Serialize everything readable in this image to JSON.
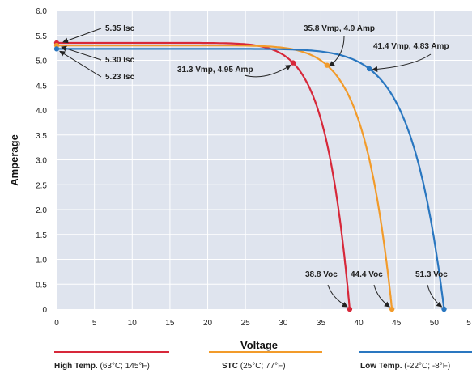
{
  "chart_data": {
    "type": "line",
    "xlabel": "Voltage",
    "ylabel": "Amperage",
    "xlim": [
      0,
      55
    ],
    "ylim": [
      0,
      6
    ],
    "x_ticks": [
      "0",
      "5",
      "10",
      "15",
      "20",
      "25",
      "30",
      "35",
      "40",
      "45",
      "50",
      "5"
    ],
    "y_ticks": [
      "0",
      "0.5",
      "1.0",
      "1.5",
      "2.0",
      "2.5",
      "3.0",
      "3.5",
      "4.0",
      "4.5",
      "5.0",
      "5.5",
      "6.0"
    ],
    "grid": true,
    "series": [
      {
        "key": "high",
        "name": "High Temp.",
        "detail": "(63°C; 145°F)",
        "color": "#d7283a",
        "isc": 5.35,
        "vmp": 31.3,
        "imp": 4.95,
        "voc": 38.8,
        "isc_label": "5.35 Isc",
        "mpp_label": "31.3 Vmp, 4.95 Amp",
        "voc_label": "38.8 Voc"
      },
      {
        "key": "stc",
        "name": "STC",
        "detail": "(25°C; 77°F)",
        "color": "#f29b2a",
        "isc": 5.3,
        "vmp": 35.8,
        "imp": 4.9,
        "voc": 44.4,
        "isc_label": "5.30 Isc",
        "mpp_label": "35.8 Vmp, 4.9 Amp",
        "voc_label": "44.4 Voc"
      },
      {
        "key": "low",
        "name": "Low Temp.",
        "detail": "(-22°C; -8°F)",
        "color": "#2a77c0",
        "isc": 5.23,
        "vmp": 41.4,
        "imp": 4.83,
        "voc": 51.3,
        "isc_label": "5.23 Isc",
        "mpp_label": "41.4  Vmp, 4.83 Amp",
        "voc_label": "51.3 Voc"
      }
    ]
  },
  "colors": {
    "plot_background": "#dfe4ee",
    "grid": "#ffffff"
  }
}
